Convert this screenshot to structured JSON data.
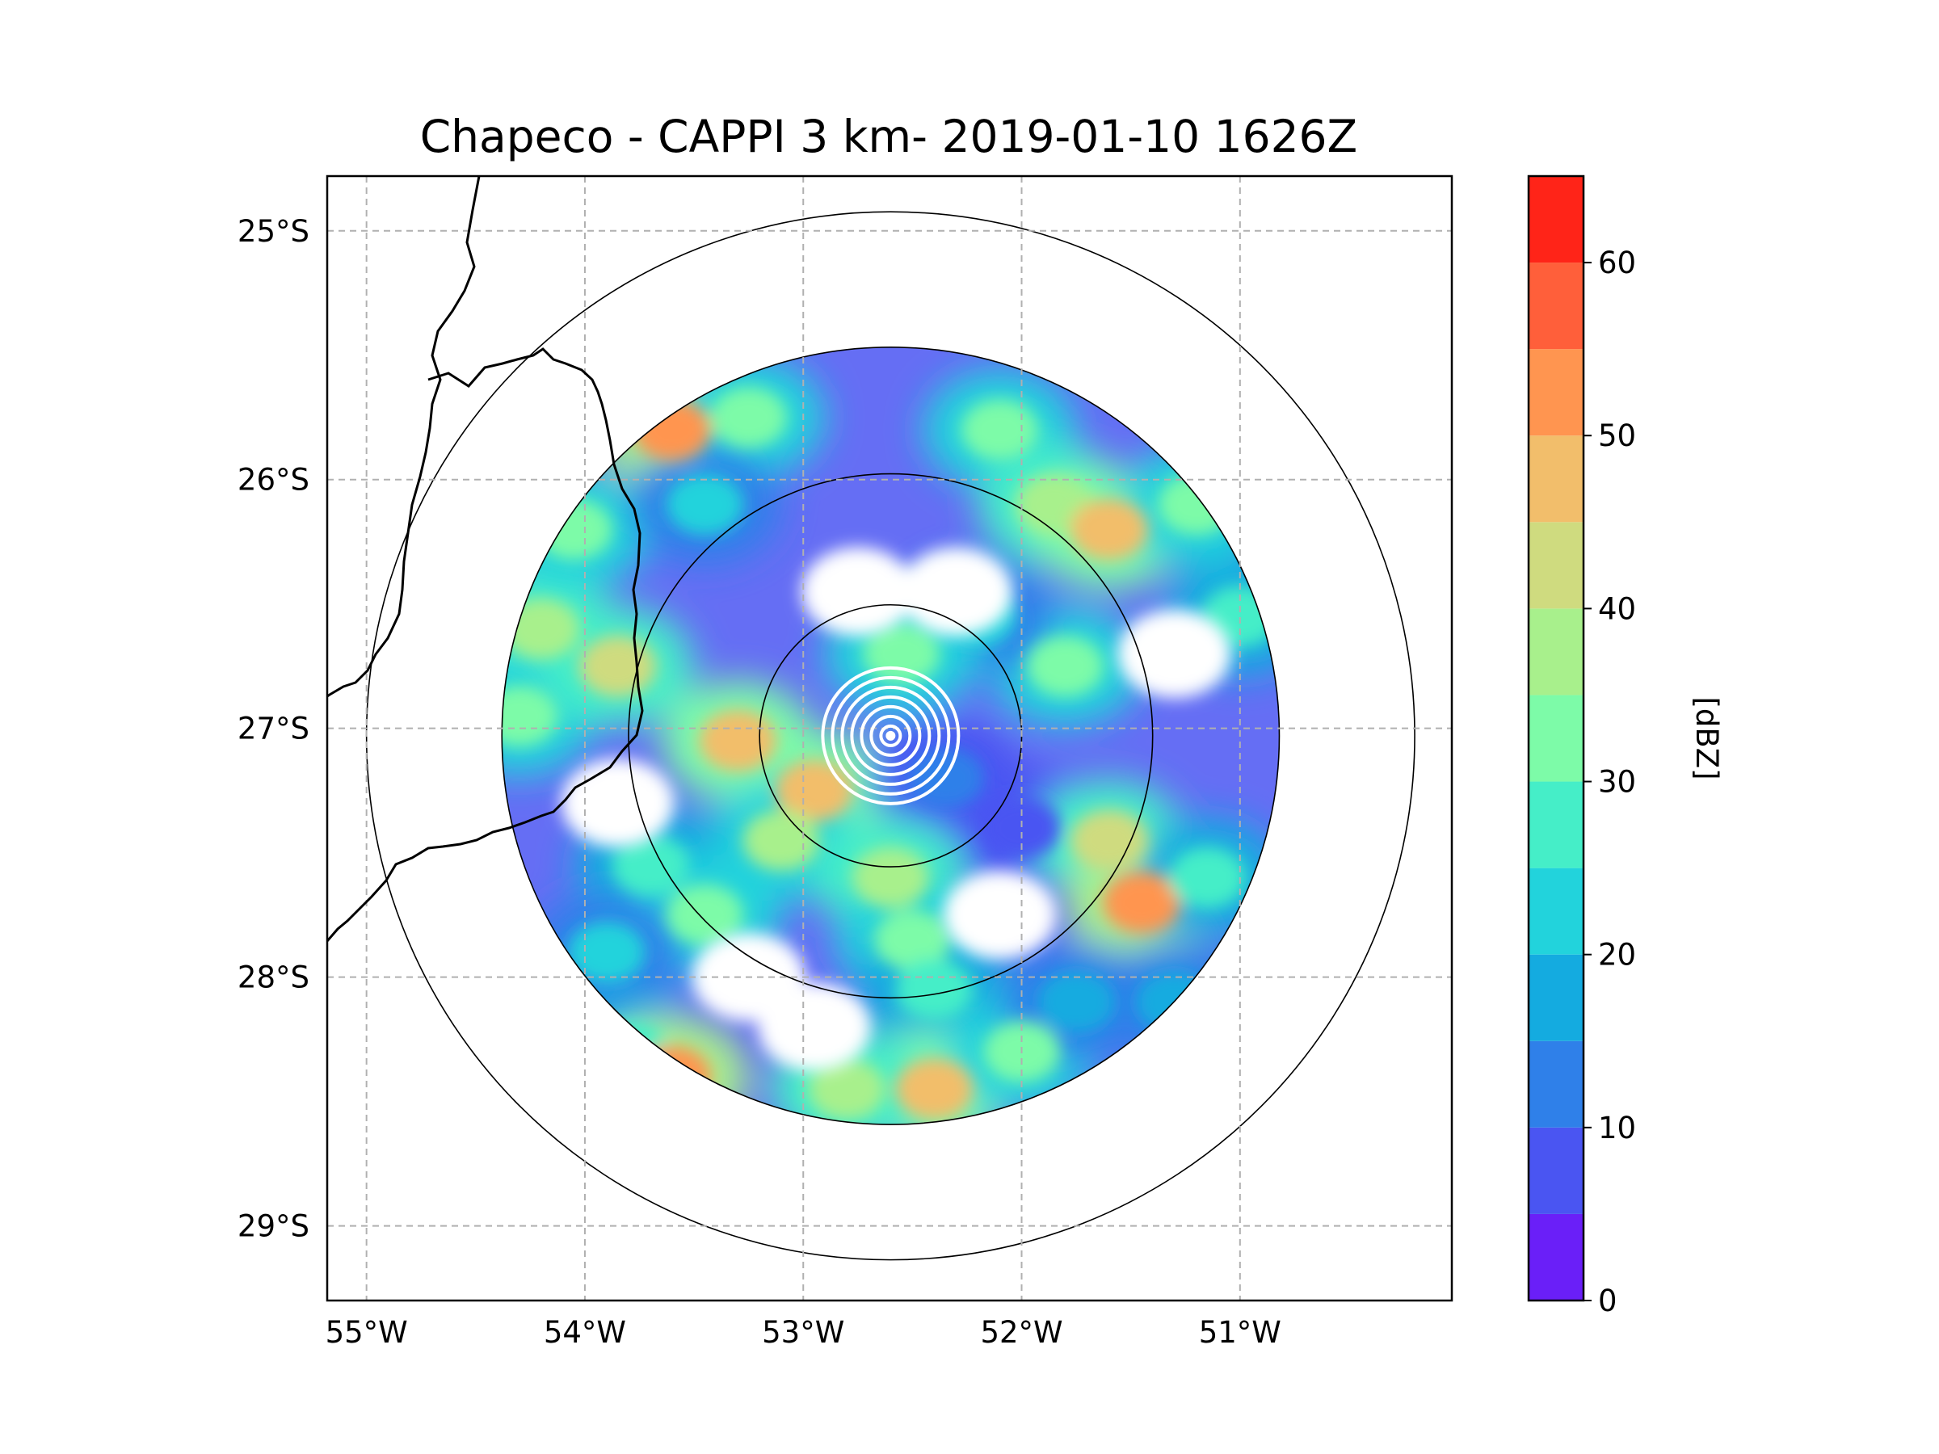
{
  "chart_data": {
    "type": "heatmap",
    "title": "Chapeco - CAPPI 3 km- 2019-01-10 1626Z",
    "xlabel": "",
    "ylabel": "",
    "x_ticks": [
      "55°W",
      "54°W",
      "53°W",
      "52°W",
      "51°W"
    ],
    "y_ticks": [
      "25°S",
      "26°S",
      "27°S",
      "28°S",
      "29°S"
    ],
    "x_tick_values": [
      -55,
      -54,
      -53,
      -52,
      -51
    ],
    "y_tick_values": [
      -25,
      -26,
      -27,
      -28,
      -29
    ],
    "xlim": [
      -55.18,
      -50.03
    ],
    "ylim": [
      -29.3,
      -24.78
    ],
    "grid": true,
    "radar_center": {
      "lon": -52.6,
      "lat": -27.03
    },
    "range_rings_deg": [
      0.6,
      1.2,
      1.78,
      2.4
    ],
    "colorbar": {
      "label": "[dBZ]",
      "min": 0,
      "max": 65,
      "step": 5,
      "ticks": [
        "0",
        "10",
        "20",
        "30",
        "40",
        "50",
        "60"
      ],
      "tick_values": [
        0,
        10,
        20,
        30,
        40,
        50,
        60
      ],
      "colors": [
        "#6a1ff8",
        "#4a55f2",
        "#2f80e9",
        "#14abe0",
        "#22d3dc",
        "#45eec8",
        "#7dfba8",
        "#a8f08c",
        "#cfdb7f",
        "#f2be6b",
        "#ff9550",
        "#ff5f3a",
        "#ff2418"
      ]
    },
    "echo_cells": [
      {
        "lon": -53.3,
        "lat": -27.05,
        "dbz": 48
      },
      {
        "lon": -52.95,
        "lat": -27.25,
        "dbz": 45
      },
      {
        "lon": -53.1,
        "lat": -27.45,
        "dbz": 35
      },
      {
        "lon": -53.7,
        "lat": -27.55,
        "dbz": 25
      },
      {
        "lon": -53.45,
        "lat": -27.75,
        "dbz": 30
      },
      {
        "lon": -53.9,
        "lat": -27.9,
        "dbz": 20
      },
      {
        "lon": -53.8,
        "lat": -28.3,
        "dbz": 25
      },
      {
        "lon": -53.6,
        "lat": -28.4,
        "dbz": 50
      },
      {
        "lon": -54.2,
        "lat": -26.6,
        "dbz": 38
      },
      {
        "lon": -54.05,
        "lat": -26.2,
        "dbz": 32
      },
      {
        "lon": -54.3,
        "lat": -26.95,
        "dbz": 30
      },
      {
        "lon": -53.85,
        "lat": -26.75,
        "dbz": 42
      },
      {
        "lon": -53.6,
        "lat": -25.8,
        "dbz": 50
      },
      {
        "lon": -53.25,
        "lat": -25.75,
        "dbz": 30
      },
      {
        "lon": -53.45,
        "lat": -26.1,
        "dbz": 20
      },
      {
        "lon": -52.1,
        "lat": -25.8,
        "dbz": 32
      },
      {
        "lon": -51.85,
        "lat": -26.1,
        "dbz": 38
      },
      {
        "lon": -51.6,
        "lat": -26.2,
        "dbz": 48
      },
      {
        "lon": -51.2,
        "lat": -26.1,
        "dbz": 32
      },
      {
        "lon": -51.0,
        "lat": -26.55,
        "dbz": 28
      },
      {
        "lon": -51.8,
        "lat": -26.75,
        "dbz": 30
      },
      {
        "lon": -52.2,
        "lat": -26.55,
        "dbz": 20
      },
      {
        "lon": -52.55,
        "lat": -26.7,
        "dbz": 32
      },
      {
        "lon": -52.35,
        "lat": -27.2,
        "dbz": 10
      },
      {
        "lon": -52.0,
        "lat": -27.4,
        "dbz": 8
      },
      {
        "lon": -51.6,
        "lat": -27.45,
        "dbz": 42
      },
      {
        "lon": -51.45,
        "lat": -27.7,
        "dbz": 52
      },
      {
        "lon": -51.15,
        "lat": -27.6,
        "dbz": 28
      },
      {
        "lon": -51.3,
        "lat": -28.1,
        "dbz": 18
      },
      {
        "lon": -52.6,
        "lat": -27.6,
        "dbz": 38
      },
      {
        "lon": -52.5,
        "lat": -27.85,
        "dbz": 32
      },
      {
        "lon": -52.4,
        "lat": -28.05,
        "dbz": 28
      },
      {
        "lon": -52.4,
        "lat": -28.45,
        "dbz": 48
      },
      {
        "lon": -52.8,
        "lat": -28.45,
        "dbz": 36
      },
      {
        "lon": -52.0,
        "lat": -28.3,
        "dbz": 30
      },
      {
        "lon": -51.75,
        "lat": -28.1,
        "dbz": 15
      }
    ],
    "clear_areas": [
      {
        "lon": -52.75,
        "lat": -26.45
      },
      {
        "lon": -52.3,
        "lat": -26.45
      },
      {
        "lon": -53.25,
        "lat": -28.0
      },
      {
        "lon": -52.95,
        "lat": -28.2
      },
      {
        "lon": -53.85,
        "lat": -27.3
      },
      {
        "lon": -51.3,
        "lat": -26.7
      },
      {
        "lon": -52.1,
        "lat": -27.75
      }
    ]
  }
}
